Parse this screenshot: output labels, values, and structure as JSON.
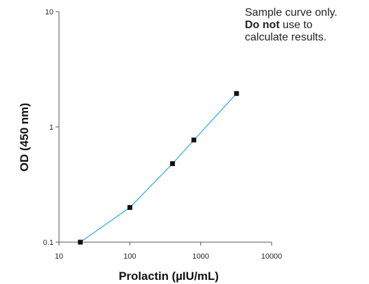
{
  "chart_data": {
    "type": "line",
    "xlabel": "Prolactin (µIU/mL)",
    "ylabel": "OD (450 nm)",
    "x_scale": "log",
    "y_scale": "log",
    "xlim": [
      10,
      10000
    ],
    "ylim": [
      0.1,
      10
    ],
    "x_ticks": [
      "10",
      "100",
      "1000",
      "10000"
    ],
    "y_ticks": [
      "0.1",
      "1",
      "10"
    ],
    "grid": false,
    "series": [
      {
        "x": [
          20,
          100,
          400,
          800,
          3200
        ],
        "y": [
          0.1,
          0.2,
          0.48,
          0.77,
          1.95
        ],
        "line_color": "#2aa6d9",
        "marker_color": "#111111"
      }
    ],
    "annotation": {
      "line1": "Sample curve only.",
      "line2_bold": "Do not",
      "line2_rest": " use to",
      "line3": "calculate results."
    }
  }
}
